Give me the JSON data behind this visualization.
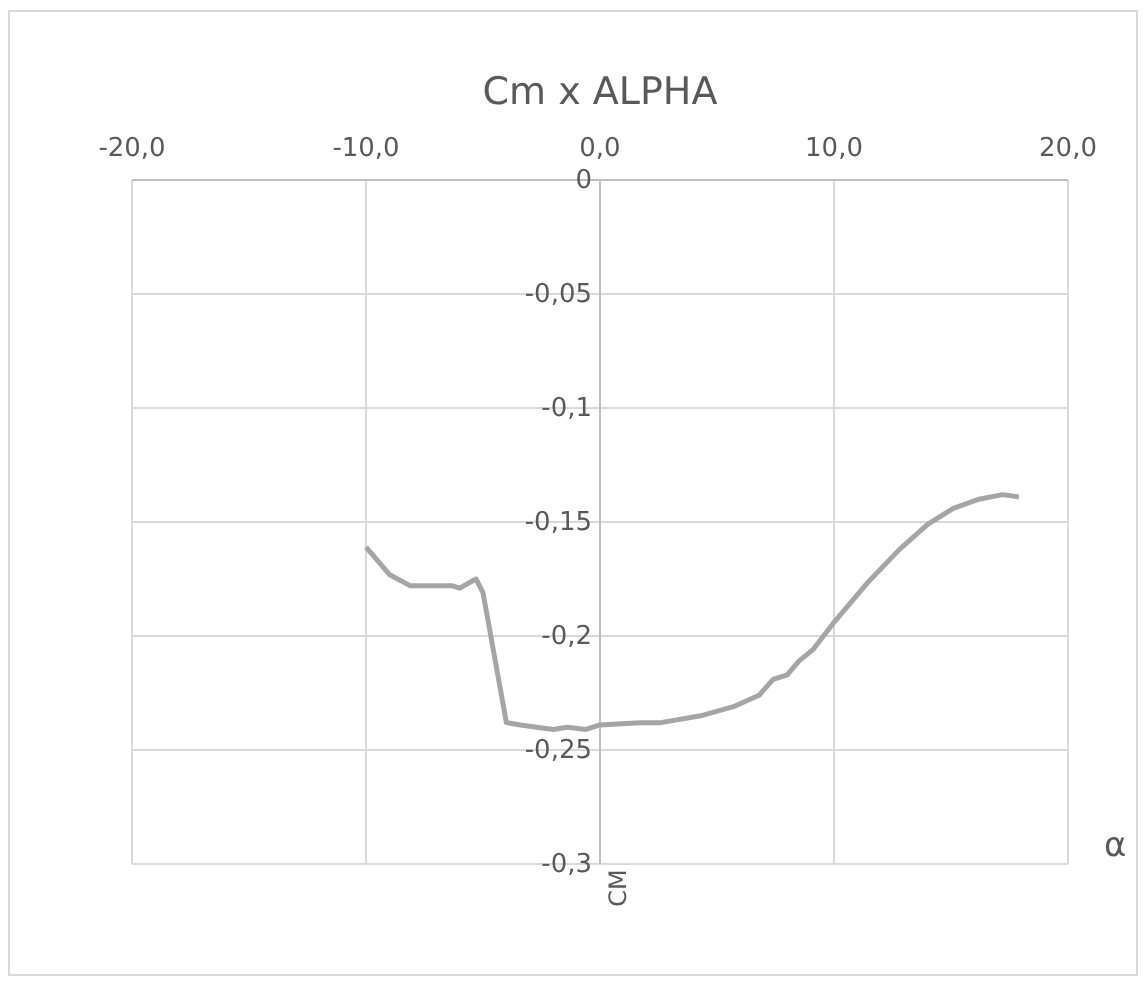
{
  "chart_data": {
    "type": "line",
    "title": "Cm x ALPHA",
    "xlabel": "α",
    "ylabel": "CM",
    "x": [
      -10,
      -9.0,
      -8.1,
      -6.3,
      -6.0,
      -5.3,
      -5.0,
      -4.0,
      -3.4,
      -2.0,
      -1.4,
      -0.6,
      0,
      1.7,
      2.6,
      4.3,
      5.7,
      6.8,
      7.4,
      8.0,
      8.5,
      9.1,
      10.0,
      11.4,
      12.8,
      14.0,
      15.1,
      16.2,
      17.2,
      17.9
    ],
    "series": [
      {
        "color": "#a5a5a5",
        "values": [
          -0.161,
          -0.173,
          -0.178,
          -0.178,
          -0.179,
          -0.175,
          -0.181,
          -0.238,
          -0.239,
          -0.241,
          -0.24,
          -0.241,
          -0.239,
          -0.238,
          -0.238,
          -0.235,
          -0.231,
          -0.226,
          -0.219,
          -0.217,
          -0.211,
          -0.206,
          -0.194,
          -0.177,
          -0.162,
          -0.151,
          -0.144,
          -0.14,
          -0.138,
          -0.139
        ]
      }
    ],
    "xlim": [
      -20,
      20
    ],
    "ylim": [
      -0.3,
      0
    ],
    "xticks": [
      {
        "value": -20,
        "label": "-20,0"
      },
      {
        "value": -10,
        "label": "-10,0"
      },
      {
        "value": 0,
        "label": "0,0"
      },
      {
        "value": 10,
        "label": "10,0"
      },
      {
        "value": 20,
        "label": "20,0"
      }
    ],
    "yticks": [
      {
        "value": -0.3,
        "label": "-0,3"
      },
      {
        "value": -0.25,
        "label": "-0,25"
      },
      {
        "value": -0.2,
        "label": "-0,2"
      },
      {
        "value": -0.15,
        "label": "-0,15"
      },
      {
        "value": -0.1,
        "label": "-0,1"
      },
      {
        "value": -0.05,
        "label": "-0,05"
      },
      0
    ],
    "grid": true,
    "marker": "none",
    "line_style": "solid"
  }
}
